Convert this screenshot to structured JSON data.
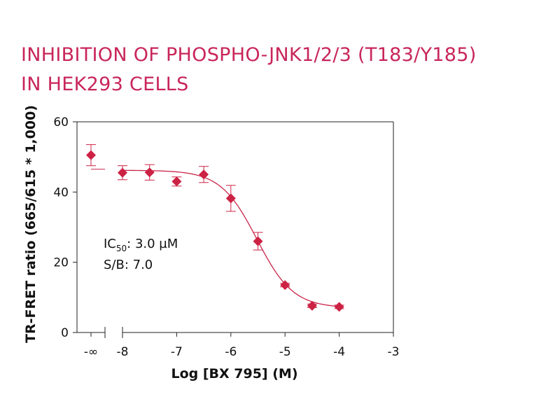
{
  "header": {
    "title_line1": "INHIBITION OF PHOSPHO-JNK1/2/3 (T183/Y185)",
    "title_line2": "IN HEK293 CELLS"
  },
  "colors": {
    "title": "#c8265a",
    "marker": "#cc2244",
    "curve": "#c8264a",
    "axis": "#222222",
    "text": "#111111"
  },
  "chart_data": {
    "type": "scatter",
    "xlabel": "Log [BX 795] (M)",
    "ylabel": "TR-FRET ratio (665/615 * 1,000)",
    "xlim": [
      -8,
      -3
    ],
    "ylim": [
      0,
      60
    ],
    "y_ticks": [
      0,
      20,
      40,
      60
    ],
    "x_ticks": [
      -8,
      -7,
      -6,
      -5,
      -4,
      -3
    ],
    "x_tick_labels": [
      "-8",
      "-7",
      "-6",
      "-5",
      "-4",
      "-3"
    ],
    "control": {
      "label": "-∞",
      "value": 50.5,
      "error": 3.0,
      "reference_line": 46.5
    },
    "series": [
      {
        "name": "BX 795",
        "x": [
          -8,
          -7.5,
          -7,
          -6.5,
          -6,
          -5.5,
          -5,
          -4.5,
          -4
        ],
        "y": [
          45.5,
          45.6,
          43.0,
          45.0,
          38.2,
          26.0,
          13.5,
          7.6,
          7.3
        ],
        "error": [
          2.0,
          2.2,
          1.3,
          2.3,
          3.7,
          2.5,
          0.5,
          0.5,
          0.5
        ]
      }
    ],
    "fit": {
      "model": "4PL",
      "top": 46.2,
      "bottom": 7.0,
      "log_ic50": -5.52,
      "hill_slope": 1.3
    },
    "annotations": {
      "ic50_prefix": "IC",
      "ic50_subscript": "50",
      "ic50_value": ": 3.0 µM",
      "sb": "S/B: 7.0"
    }
  }
}
